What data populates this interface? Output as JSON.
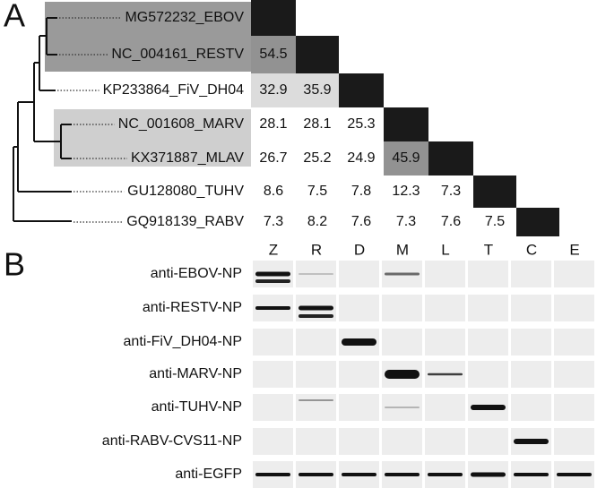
{
  "panel_a": {
    "label": "A",
    "taxa": [
      "MG572232_EBOV",
      "NC_004161_RESTV",
      "KP233864_FiV_DH04",
      "NC_001608_MARV",
      "KX371887_MLAV",
      "GU128080_TUHV",
      "GQ918139_RABV"
    ],
    "matrix": {
      "rows": [
        [],
        [
          54.5
        ],
        [
          32.9,
          35.9
        ],
        [
          28.1,
          28.1,
          25.3
        ],
        [
          26.7,
          25.2,
          24.9,
          45.9
        ],
        [
          8.6,
          7.5,
          7.8,
          12.3,
          7.3
        ],
        [
          7.3,
          8.2,
          7.6,
          7.3,
          7.6,
          7.5
        ]
      ]
    }
  },
  "panel_b": {
    "label": "B",
    "lanes": [
      "Z",
      "R",
      "D",
      "M",
      "L",
      "T",
      "C",
      "E"
    ],
    "antibodies": [
      "anti-EBOV-NP",
      "anti-RESTV-NP",
      "anti-FiV_DH04-NP",
      "anti-MARV-NP",
      "anti-TUHV-NP",
      "anti-RABV-CVS11-NP",
      "anti-EGFP"
    ]
  }
}
